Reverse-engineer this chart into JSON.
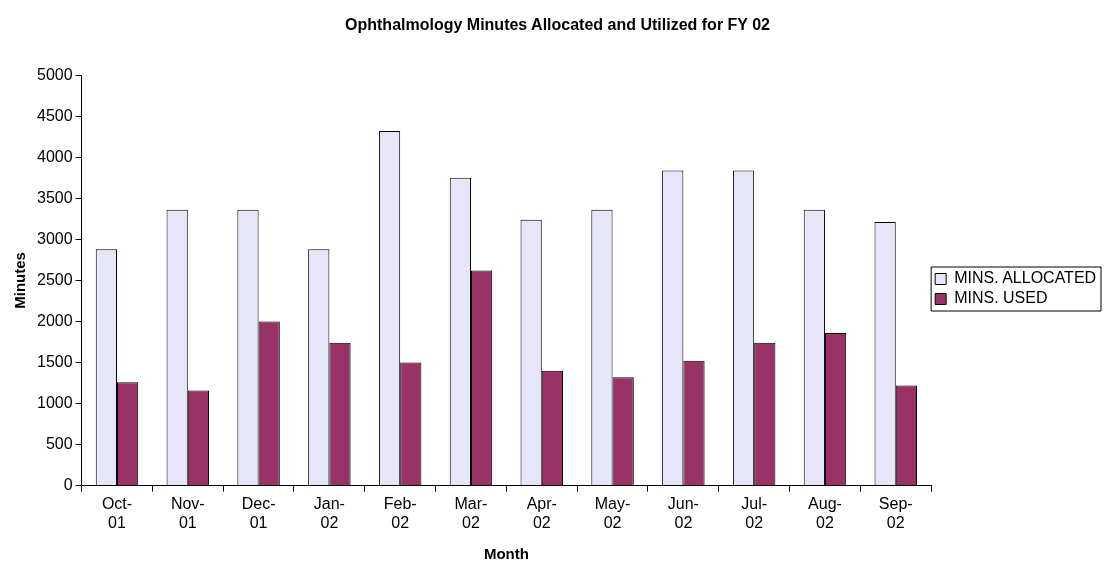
{
  "chart_data": {
    "type": "bar",
    "title": "Ophthalmology Minutes Allocated and Utilized for FY 02",
    "xlabel": "Month",
    "ylabel": "Minutes",
    "categories": [
      "Oct-01",
      "Nov-01",
      "Dec-01",
      "Jan-02",
      "Feb-02",
      "Mar-02",
      "Apr-02",
      "May-02",
      "Jun-02",
      "Jul-02",
      "Aug-02",
      "Sep-02"
    ],
    "series": [
      {
        "name": "MINS. ALLOCATED",
        "color": "#e6e6f8",
        "values": [
          2880,
          3360,
          3360,
          2880,
          4320,
          3750,
          3240,
          3360,
          3840,
          3840,
          3360,
          3210
        ]
      },
      {
        "name": "MINS. USED",
        "color": "#993366",
        "values": [
          1260,
          1160,
          2000,
          1740,
          1500,
          2620,
          1400,
          1320,
          1520,
          1740,
          1860,
          1220
        ]
      }
    ],
    "ylim": [
      0,
      5000
    ],
    "yticks": [
      0,
      500,
      1000,
      1500,
      2000,
      2500,
      3000,
      3500,
      4000,
      4500,
      5000
    ],
    "grid": false,
    "legend": "right"
  }
}
